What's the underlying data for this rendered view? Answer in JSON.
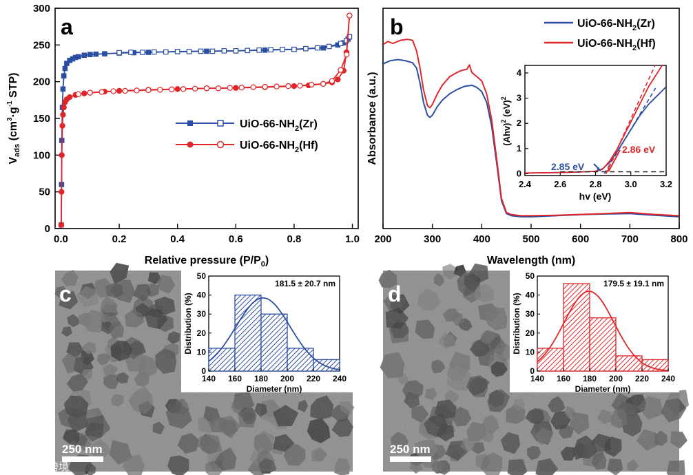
{
  "colors": {
    "zr": "#2b4ea2",
    "hf": "#e0262a",
    "axis": "#000000",
    "gray_dash": "#222222"
  },
  "chart_data": [
    {
      "panel": "a",
      "type": "line",
      "title": "",
      "xlabel": "Relative pressure (P/P",
      "xlabel_sub": "0",
      "xlabel_close": ")",
      "ylabel_main": "V",
      "ylabel_sub": "ads",
      "ylabel_tail": " (cm",
      "ylabel_sup1": "3",
      "ylabel_mid": "·g",
      "ylabel_sup2": "-1",
      "ylabel_end": " STP)",
      "xlim": [
        -0.02,
        1.02
      ],
      "ylim": [
        0,
        300
      ],
      "xticks": [
        "0.0",
        "0.2",
        "0.4",
        "0.6",
        "0.8",
        "1.0"
      ],
      "yticks": [
        "0",
        "50",
        "100",
        "150",
        "200",
        "250",
        "300"
      ],
      "legend": [
        {
          "prefix": "UiO-66-NH",
          "sub": "2",
          "suffix": "(Zr)"
        },
        {
          "prefix": "UiO-66-NH",
          "sub": "2",
          "suffix": "(Hf)"
        }
      ],
      "series": [
        {
          "name": "UiO-66-NH2(Zr) adsorption",
          "x": [
            0.001,
            0.002,
            0.003,
            0.005,
            0.007,
            0.01,
            0.014,
            0.02,
            0.03,
            0.04,
            0.05,
            0.06,
            0.08,
            0.1,
            0.12,
            0.15,
            0.2,
            0.25,
            0.3,
            0.4,
            0.5,
            0.6,
            0.7,
            0.8,
            0.9,
            0.95,
            0.97,
            0.985,
            0.99
          ],
          "y": [
            5,
            60,
            120,
            165,
            190,
            208,
            218,
            225,
            229,
            231,
            233,
            234,
            236,
            237,
            237.5,
            238,
            239,
            239.5,
            240,
            241,
            241.5,
            242,
            243,
            244,
            246,
            250,
            253,
            258,
            261
          ]
        },
        {
          "name": "UiO-66-NH2(Zr) desorption",
          "x": [
            0.99,
            0.98,
            0.96,
            0.92,
            0.88,
            0.84,
            0.8,
            0.76,
            0.72,
            0.68,
            0.64,
            0.6,
            0.56,
            0.52,
            0.48,
            0.44,
            0.4,
            0.36,
            0.32,
            0.28,
            0.24,
            0.2
          ],
          "y": [
            261,
            256,
            252,
            248,
            246,
            245,
            244,
            244,
            243.5,
            243,
            242.5,
            242,
            242,
            241.5,
            241.5,
            241,
            241,
            240.5,
            240.5,
            240,
            240,
            239.5
          ]
        },
        {
          "name": "UiO-66-NH2(Hf) adsorption",
          "x": [
            0.001,
            0.002,
            0.003,
            0.005,
            0.007,
            0.01,
            0.014,
            0.02,
            0.03,
            0.05,
            0.08,
            0.1,
            0.15,
            0.2,
            0.3,
            0.4,
            0.5,
            0.6,
            0.7,
            0.8,
            0.85,
            0.9,
            0.93,
            0.95,
            0.97,
            0.98,
            0.99
          ],
          "y": [
            5,
            50,
            100,
            140,
            155,
            165,
            172,
            176,
            179,
            182,
            184,
            185,
            186.5,
            187.5,
            189,
            190,
            191,
            191.5,
            192.5,
            194,
            195,
            197,
            199,
            203,
            215,
            240,
            290
          ]
        },
        {
          "name": "UiO-66-NH2(Hf) desorption",
          "x": [
            0.99,
            0.98,
            0.96,
            0.93,
            0.9,
            0.86,
            0.82,
            0.78,
            0.74,
            0.7,
            0.66,
            0.62,
            0.58,
            0.54,
            0.5,
            0.46,
            0.42,
            0.38,
            0.34,
            0.3,
            0.26,
            0.22,
            0.18,
            0.14,
            0.1,
            0.06
          ],
          "y": [
            290,
            237,
            216,
            201,
            197,
            196,
            194.5,
            194,
            193.5,
            193,
            192.5,
            192,
            191.5,
            191,
            191,
            190.5,
            190,
            189.5,
            189,
            188.5,
            188,
            187.5,
            187,
            186,
            185,
            183
          ]
        }
      ]
    },
    {
      "panel": "b",
      "type": "line",
      "title": "",
      "xlabel": "Wavelength (nm)",
      "ylabel": "Absorbance (a.u.)",
      "xlim": [
        200,
        800
      ],
      "ylim": [
        0,
        1
      ],
      "xticks": [
        "200",
        "300",
        "400",
        "500",
        "600",
        "700",
        "800"
      ],
      "legend": [
        {
          "prefix": "UiO-66-NH",
          "sub": "2",
          "suffix": "(Zr)"
        },
        {
          "prefix": "UiO-66-NH",
          "sub": "2",
          "suffix": "(Hf)"
        }
      ],
      "series": [
        {
          "name": "UiO-66-NH2(Zr)",
          "x": [
            200,
            215,
            230,
            245,
            260,
            268,
            275,
            282,
            290,
            295,
            300,
            310,
            320,
            335,
            350,
            365,
            380,
            390,
            400,
            410,
            420,
            430,
            440,
            450,
            460,
            480,
            500,
            550,
            600,
            650,
            700,
            750,
            800
          ],
          "y": [
            0.74,
            0.755,
            0.76,
            0.755,
            0.745,
            0.72,
            0.65,
            0.56,
            0.5,
            0.49,
            0.5,
            0.54,
            0.57,
            0.6,
            0.62,
            0.635,
            0.64,
            0.63,
            0.61,
            0.56,
            0.45,
            0.28,
            0.1,
            0.04,
            0.03,
            0.025,
            0.025,
            0.03,
            0.035,
            0.038,
            0.04,
            0.032,
            0.025
          ]
        },
        {
          "name": "UiO-66-NH2(Hf)",
          "x": [
            200,
            210,
            220,
            235,
            250,
            260,
            268,
            275,
            282,
            290,
            295,
            300,
            310,
            320,
            335,
            350,
            360,
            370,
            375,
            380,
            390,
            400,
            410,
            420,
            430,
            440,
            450,
            460,
            480,
            500,
            550,
            600,
            650,
            700,
            750,
            800
          ],
          "y": [
            0.83,
            0.845,
            0.835,
            0.85,
            0.855,
            0.85,
            0.8,
            0.72,
            0.62,
            0.545,
            0.535,
            0.55,
            0.6,
            0.64,
            0.68,
            0.7,
            0.71,
            0.715,
            0.735,
            0.7,
            0.68,
            0.66,
            0.6,
            0.48,
            0.3,
            0.11,
            0.045,
            0.035,
            0.03,
            0.03,
            0.032,
            0.036,
            0.04,
            0.045,
            0.036,
            0.03
          ]
        }
      ]
    },
    {
      "panel": "b-inset",
      "type": "line",
      "xlabel": "hv (eV)",
      "ylabel_pre": "(Ahv)",
      "ylabel_sup": "2",
      "ylabel_unit": " (eV)",
      "ylabel_sup2": "2",
      "xlim": [
        2.4,
        3.2
      ],
      "ylim": [
        0,
        4.3
      ],
      "xticks": [
        "2.4",
        "2.6",
        "2.8",
        "3.0",
        "3.2"
      ],
      "yticks": [
        "0",
        "1",
        "2",
        "3",
        "4"
      ],
      "annotations": [
        "2.85 eV",
        "2.86 eV"
      ],
      "series": [
        {
          "name": "Zr",
          "x": [
            2.4,
            2.6,
            2.75,
            2.8,
            2.84,
            2.88,
            2.92,
            2.96,
            3.0,
            3.05,
            3.1,
            3.15,
            3.2
          ],
          "y": [
            0.03,
            0.05,
            0.08,
            0.1,
            0.2,
            0.45,
            0.85,
            1.3,
            1.75,
            2.3,
            2.75,
            3.1,
            3.45
          ]
        },
        {
          "name": "Hf",
          "x": [
            2.4,
            2.6,
            2.75,
            2.8,
            2.84,
            2.88,
            2.92,
            2.96,
            3.0,
            3.05,
            3.1,
            3.15,
            3.2
          ],
          "y": [
            0.03,
            0.05,
            0.08,
            0.1,
            0.18,
            0.5,
            0.95,
            1.5,
            2.05,
            2.75,
            3.45,
            4.0,
            4.55
          ]
        },
        {
          "name": "Zr tangent",
          "x": [
            2.85,
            3.14
          ],
          "y": [
            0,
            3.4
          ]
        },
        {
          "name": "Hf tangent",
          "x": [
            2.86,
            3.14
          ],
          "y": [
            0,
            4.35
          ]
        },
        {
          "name": "baseline",
          "x": [
            2.6,
            3.2
          ],
          "y": [
            0.08,
            0.08
          ]
        }
      ]
    },
    {
      "panel": "c-inset",
      "type": "bar",
      "categories": [
        "140-160",
        "160-180",
        "180-200",
        "200-220",
        "220-240"
      ],
      "values": [
        12,
        40,
        30,
        12,
        6
      ],
      "fit": {
        "mean": 181.5,
        "sd": 20.7,
        "peak": 38.5
      },
      "annotation": "181.5 ± 20.7 nm",
      "xlabel": "Diameter (nm)",
      "ylabel": "Distribution (%)",
      "xlim": [
        140,
        240
      ],
      "ylim": [
        0,
        50
      ],
      "xticks": [
        "140",
        "160",
        "180",
        "200",
        "220",
        "240"
      ],
      "yticks": [
        "0",
        "10",
        "20",
        "30",
        "40",
        "50"
      ]
    },
    {
      "panel": "d-inset",
      "type": "bar",
      "categories": [
        "140-160",
        "160-180",
        "180-200",
        "200-220",
        "220-240"
      ],
      "values": [
        12,
        46,
        28,
        8,
        6
      ],
      "fit": {
        "mean": 179.5,
        "sd": 19.1,
        "peak": 42
      },
      "annotation": "179.5 ± 19.1 nm",
      "xlabel": "Diameter (nm)",
      "ylabel": "Distribution (%)",
      "xlim": [
        140,
        240
      ],
      "ylim": [
        0,
        50
      ],
      "xticks": [
        "140",
        "160",
        "180",
        "200",
        "220",
        "240"
      ],
      "yticks": [
        "0",
        "10",
        "20",
        "30",
        "40",
        "50"
      ]
    }
  ],
  "panels": {
    "a_label": "a",
    "b_label": "b",
    "c_label": "c",
    "d_label": "d",
    "scale_bar_c": "250 nm",
    "scale_bar_d": "250 nm",
    "watermark": "大数跨境"
  }
}
